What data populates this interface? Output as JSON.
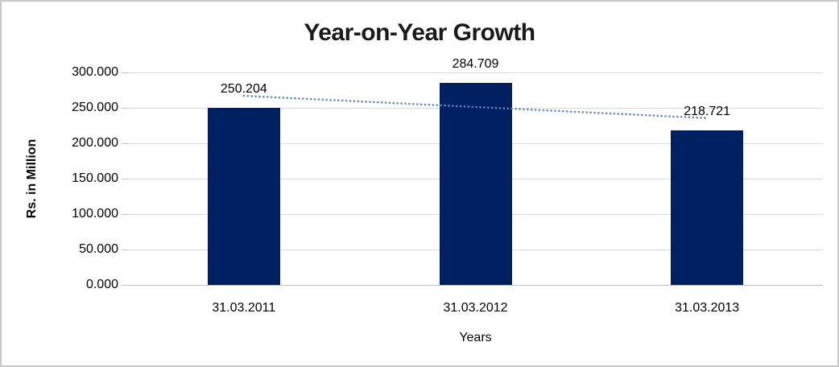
{
  "chart_data": {
    "type": "bar",
    "title": "Year-on-Year Growth",
    "xlabel": "Years",
    "ylabel": "Rs. in Million",
    "categories": [
      "31.03.2011",
      "31.03.2012",
      "31.03.2013"
    ],
    "values": [
      250.204,
      284.709,
      218.721
    ],
    "data_labels": [
      "250.204",
      "284.709",
      "218.721"
    ],
    "y_tick_values": [
      0,
      50,
      100,
      150,
      200,
      250,
      300
    ],
    "y_tick_labels": [
      "0.000",
      "50.000",
      "100.000",
      "150.000",
      "200.000",
      "250.000",
      "300.000"
    ],
    "ylim": [
      0,
      300
    ],
    "grid": true,
    "legend": "none",
    "trendline": {
      "type": "linear",
      "style": "dotted"
    },
    "colors": {
      "bar": "#002060",
      "trendline": "#5a8ac6",
      "gridline": "#d9d9d9",
      "axis_line": "#bfbfbf",
      "text": "#000000",
      "frame_border": "#c8c8c8"
    }
  }
}
